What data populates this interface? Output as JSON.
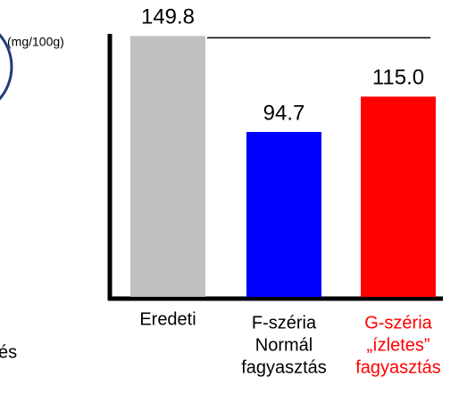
{
  "chart_data": {
    "type": "bar",
    "y_label": "(mg/100g)",
    "categories": [
      [
        "Eredeti"
      ],
      [
        "F-széria",
        "Normál",
        "fagyasztás"
      ],
      [
        "G-széria",
        "„ízletes”",
        "fagyasztás"
      ]
    ],
    "category_colors": [
      "#000000",
      "#000000",
      "#ff0000"
    ],
    "values": [
      149.8,
      94.7,
      115
    ],
    "value_labels": [
      "149.8",
      "94.7",
      "115.0"
    ],
    "colors": [
      "#c0c0c0",
      "#0000ff",
      "#ff0000"
    ],
    "ylim": [
      0,
      150
    ],
    "side_text": "és"
  }
}
